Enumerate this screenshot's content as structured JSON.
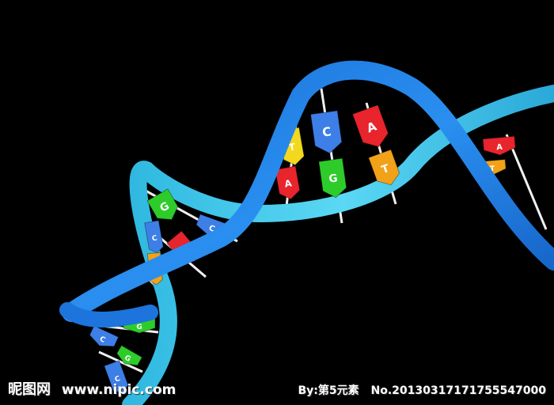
{
  "watermark": {
    "site_cn": "昵图网",
    "site_url": "www.nipic.com",
    "by_label": "By:第5元素",
    "number": "No.20130317171755547000"
  },
  "colors": {
    "background": "#000000",
    "strand_dark": "#1e7ee0",
    "strand_light": "#38c4e8",
    "base_A": "#e8242c",
    "base_T": "#f2a218",
    "base_G": "#2ecc2a",
    "base_C": "#3d7fe6",
    "base_yellow": "#f2d81e"
  },
  "bases": {
    "letters": [
      "T",
      "A",
      "C",
      "G",
      "A",
      "T",
      "A",
      "T",
      "G",
      "C",
      "C",
      "A",
      "T",
      "G",
      "C",
      "G",
      "C"
    ]
  }
}
